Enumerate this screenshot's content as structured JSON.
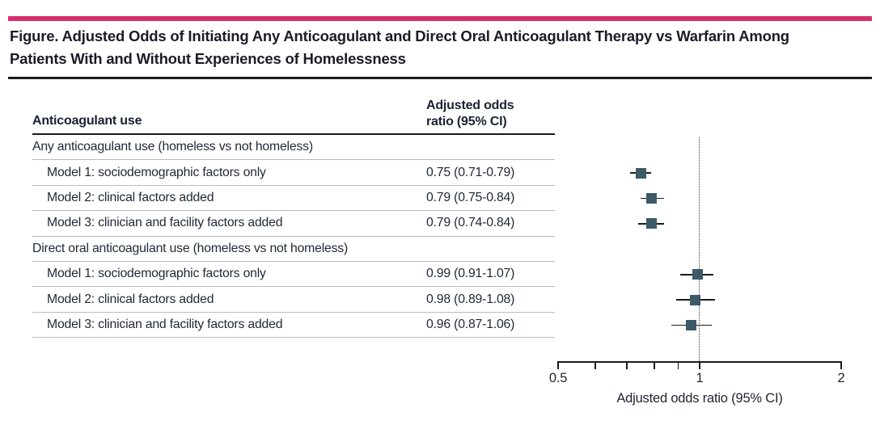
{
  "figure": {
    "title": "Figure. Adjusted Odds of Initiating Any Anticoagulant and Direct Oral Anticoagulant Therapy vs Warfarin Among Patients With and Without Experiences of Homelessness"
  },
  "table": {
    "col1_header": "Anticoagulant use",
    "col2_header_line1": "Adjusted odds",
    "col2_header_line2": "ratio (95% CI)"
  },
  "colors": {
    "accent_bar": "#d62e6e",
    "marker": "#3c5a68",
    "ci_line": "#1c1c1c",
    "rule": "#1a1a1a",
    "separator": "#b8bcc1"
  },
  "chart_data": {
    "type": "scatter",
    "variant": "forest-plot",
    "xlabel": "Adjusted odds ratio (95% CI)",
    "x_scale": "log",
    "xlim": [
      0.5,
      2
    ],
    "x_ticks": [
      0.5,
      0.6,
      0.7,
      0.8,
      0.9,
      1,
      2
    ],
    "x_tick_labels": [
      {
        "value": 0.5,
        "label": "0.5"
      },
      {
        "value": 1,
        "label": "1"
      },
      {
        "value": 2,
        "label": "2"
      }
    ],
    "reference_line_x": 1,
    "grid": false,
    "legend": "none",
    "groups": [
      {
        "label": "Any anticoagulant use (homeless vs not homeless)",
        "rows": [
          {
            "label": "Model 1: sociodemographic factors only",
            "value_text": "0.75 (0.71-0.79)",
            "or": 0.75,
            "ci_low": 0.71,
            "ci_high": 0.79
          },
          {
            "label": "Model 2: clinical factors added",
            "value_text": "0.79 (0.75-0.84)",
            "or": 0.79,
            "ci_low": 0.75,
            "ci_high": 0.84
          },
          {
            "label": "Model 3: clinician and facility factors added",
            "value_text": "0.79 (0.74-0.84)",
            "or": 0.79,
            "ci_low": 0.74,
            "ci_high": 0.84
          }
        ]
      },
      {
        "label": "Direct oral anticoagulant use (homeless vs not homeless)",
        "rows": [
          {
            "label": "Model 1: sociodemographic factors only",
            "value_text": "0.99 (0.91-1.07)",
            "or": 0.99,
            "ci_low": 0.91,
            "ci_high": 1.07
          },
          {
            "label": "Model 2: clinical factors added",
            "value_text": "0.98 (0.89-1.08)",
            "or": 0.98,
            "ci_low": 0.89,
            "ci_high": 1.08
          },
          {
            "label": "Model 3: clinician and facility factors added",
            "value_text": "0.96 (0.87-1.06)",
            "or": 0.96,
            "ci_low": 0.87,
            "ci_high": 1.06
          }
        ]
      }
    ]
  }
}
